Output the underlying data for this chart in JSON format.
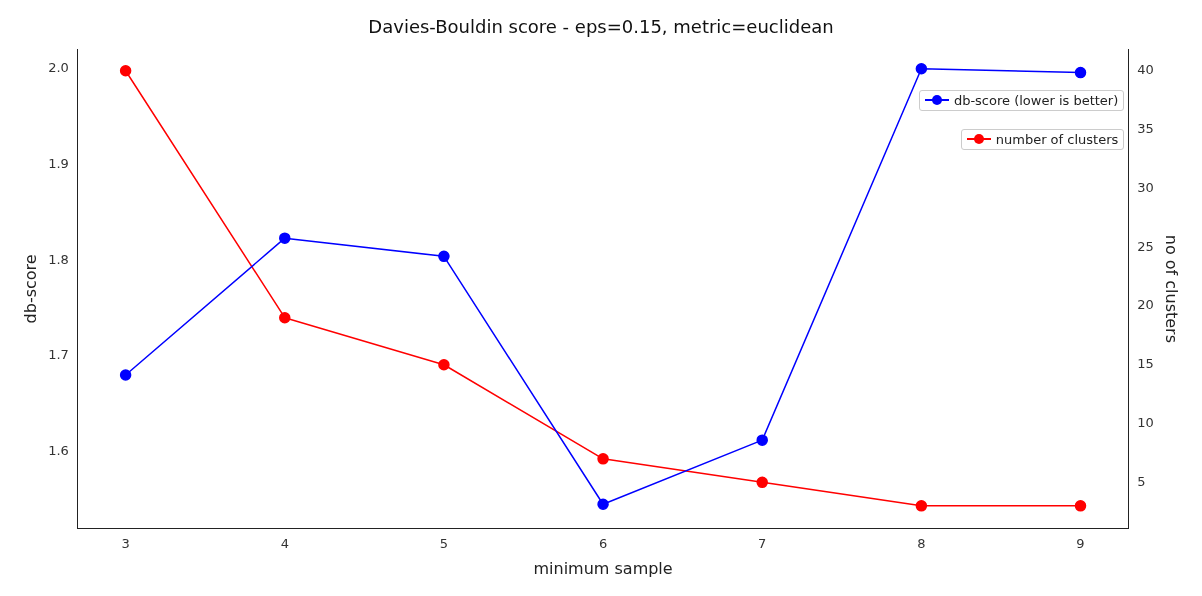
{
  "chart_data": {
    "type": "line",
    "title": "Davies-Bouldin score - eps=0.15, metric=euclidean",
    "xlabel": "minimum sample",
    "ylabel": "db-score",
    "y2label": "no of clusters",
    "x": [
      3,
      4,
      5,
      6,
      7,
      8,
      9
    ],
    "xlim": [
      2.7,
      9.3
    ],
    "xticks": [
      3,
      4,
      5,
      6,
      7,
      8,
      9
    ],
    "ylim": [
      1.52,
      2.02
    ],
    "yticks": [
      {
        "value": 1.6,
        "label": "1.6"
      },
      {
        "value": 1.7,
        "label": "1.7"
      },
      {
        "value": 1.8,
        "label": "1.8"
      },
      {
        "value": 1.9,
        "label": "1.9"
      },
      {
        "value": 2.0,
        "label": "2.0"
      }
    ],
    "y2lim": [
      1.1,
      41.8
    ],
    "y2ticks": [
      5,
      10,
      15,
      20,
      25,
      30,
      35,
      40
    ],
    "series": [
      {
        "name": "db-score (lower is better)",
        "color": "#0000ff",
        "values": [
          1.68,
          1.823,
          1.804,
          1.545,
          1.612,
          2.0,
          1.996
        ]
      },
      {
        "name": "number of clusters",
        "color": "#ff0000",
        "axis": "y2",
        "values": [
          40,
          19,
          15,
          7,
          5,
          3,
          3
        ]
      }
    ],
    "marker": "circle",
    "line_style": "solid",
    "legend": "top right",
    "grid": false
  }
}
